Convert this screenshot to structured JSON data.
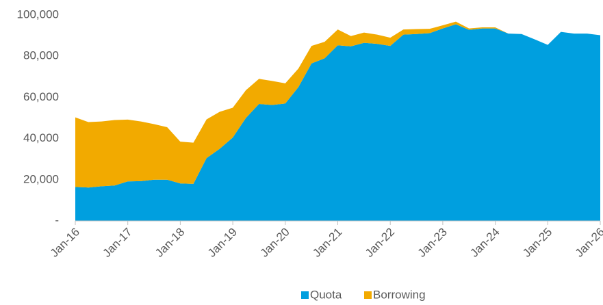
{
  "chart_data": {
    "type": "stacked_area",
    "categories": [
      "Jan-16",
      null,
      null,
      null,
      "Jan-17",
      null,
      null,
      null,
      "Jan-18",
      null,
      null,
      null,
      "Jan-19",
      null,
      null,
      null,
      "Jan-20",
      null,
      null,
      null,
      "Jan-21",
      null,
      null,
      null,
      "Jan-22",
      null,
      null,
      null,
      "Jan-23",
      null,
      null,
      null,
      "Jan-24",
      null,
      null,
      null,
      "Jan-25",
      null,
      null,
      null,
      "Jan-26"
    ],
    "series": [
      {
        "name": "Quota",
        "color": "#009fdf",
        "values": [
          16500,
          16200,
          16800,
          17200,
          19200,
          19300,
          20000,
          20000,
          18200,
          18000,
          30500,
          35000,
          40500,
          50000,
          56800,
          56300,
          57000,
          65000,
          76500,
          79000,
          85300,
          84800,
          86500,
          86000,
          85000,
          90500,
          90800,
          91200,
          93500,
          95500,
          92800,
          93500,
          93500,
          91000,
          90800,
          88200,
          85500,
          91800,
          91000,
          91000,
          90200
        ]
      },
      {
        "name": "Borrowing",
        "color": "#f2aa00",
        "values": [
          33800,
          31800,
          31500,
          31800,
          30000,
          29000,
          27000,
          25500,
          20300,
          20000,
          18800,
          18000,
          14500,
          13500,
          12200,
          11700,
          9800,
          9000,
          8500,
          8000,
          7700,
          5000,
          5000,
          4500,
          4000,
          2500,
          2400,
          2100,
          1500,
          1300,
          700,
          500,
          500,
          0,
          0,
          0,
          0,
          0,
          0,
          0,
          0
        ]
      }
    ],
    "ylim": [
      0,
      100000
    ],
    "yticks": [
      {
        "value": 0,
        "label": "-"
      },
      {
        "value": 20000,
        "label": "20,000"
      },
      {
        "value": 40000,
        "label": "40,000"
      },
      {
        "value": 60000,
        "label": "60,000"
      },
      {
        "value": 80000,
        "label": "80,000"
      },
      {
        "value": 100000,
        "label": "100,000"
      }
    ],
    "legend": "bottom"
  }
}
